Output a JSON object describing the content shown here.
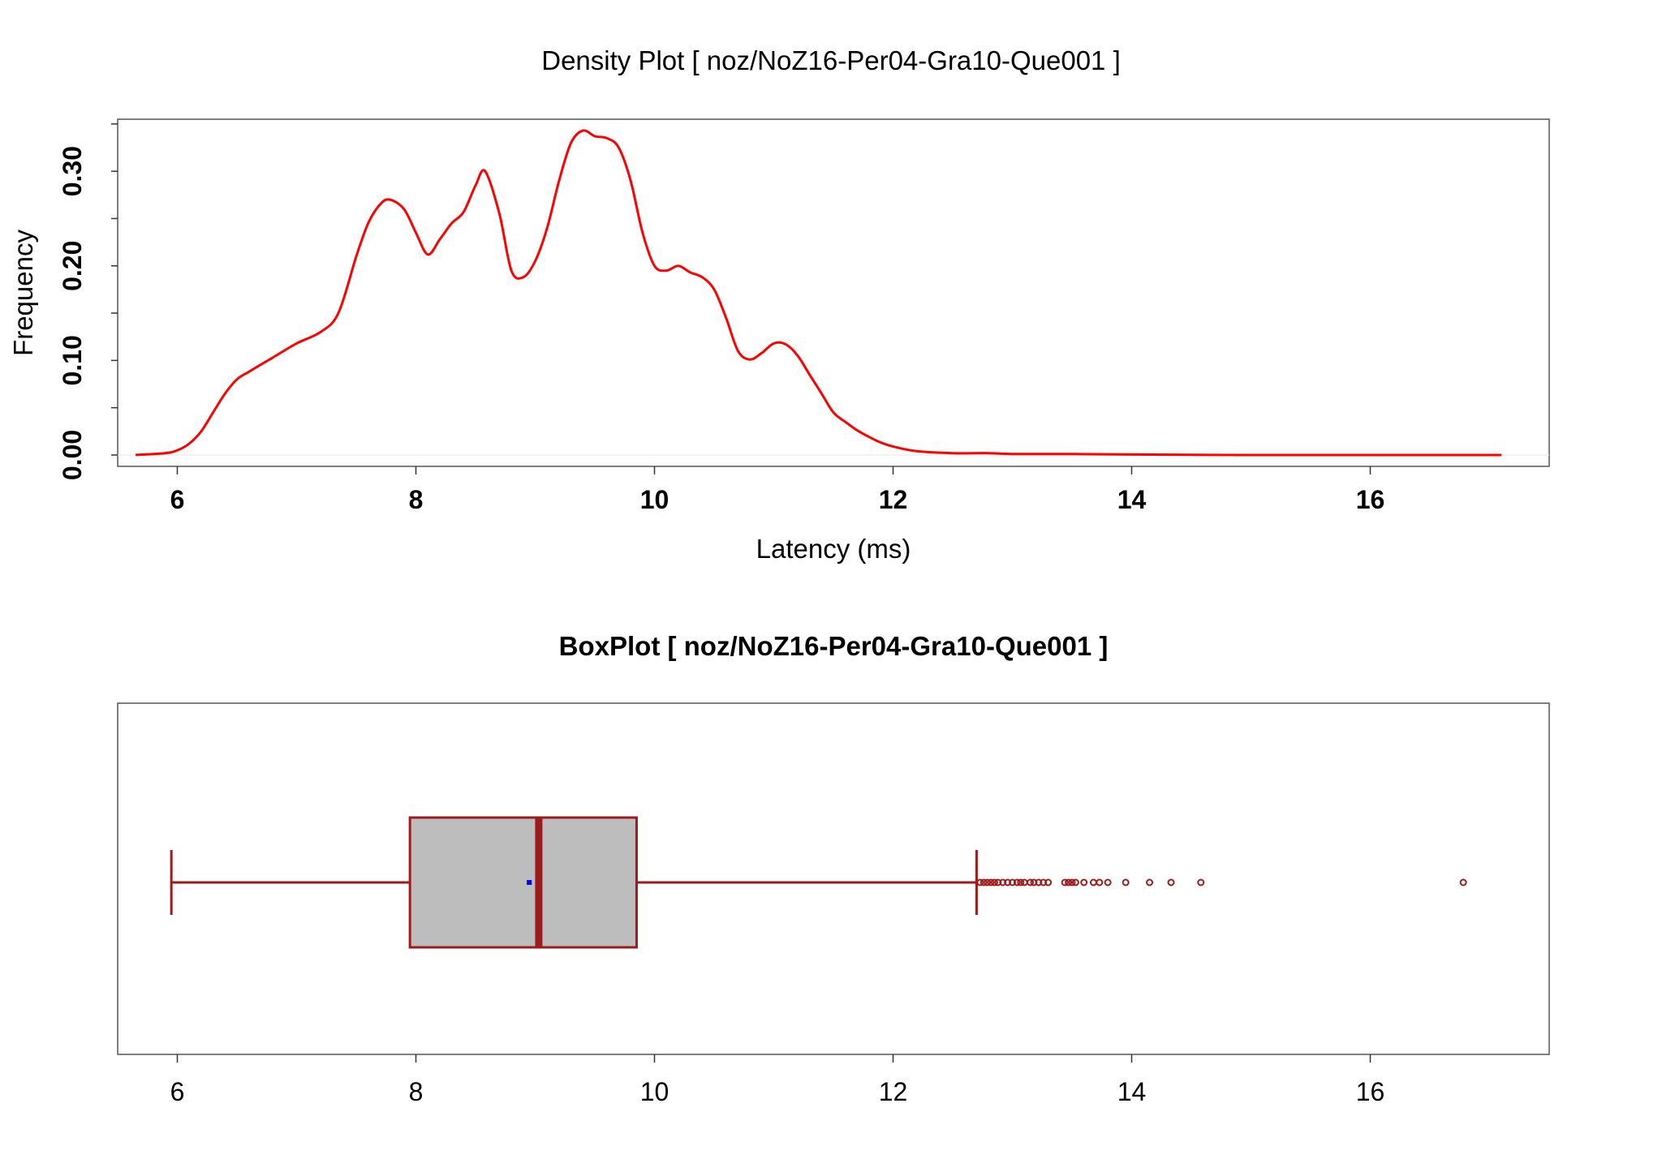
{
  "chart_data": [
    {
      "type": "line",
      "title": "Density Plot [ noz/NoZ16-Per04-Gra10-Que001 ]",
      "xlabel": "Latency (ms)",
      "ylabel": "Frequency",
      "xlim": [
        5.5,
        17.5
      ],
      "ylim": [
        -0.012,
        0.355
      ],
      "x_ticks": [
        "6",
        "8",
        "10",
        "12",
        "14",
        "16"
      ],
      "y_ticks": [
        "0.00",
        "0.10",
        "0.20",
        "0.30"
      ],
      "grid": false,
      "series": [
        {
          "color": "#ff0000",
          "x": [
            5.65,
            5.9,
            6.0,
            6.1,
            6.2,
            6.3,
            6.4,
            6.5,
            6.6,
            6.8,
            7.0,
            7.2,
            7.35,
            7.5,
            7.6,
            7.7,
            7.78,
            7.9,
            8.0,
            8.1,
            8.2,
            8.3,
            8.4,
            8.5,
            8.58,
            8.7,
            8.8,
            8.9,
            9.0,
            9.1,
            9.2,
            9.3,
            9.4,
            9.5,
            9.6,
            9.7,
            9.8,
            9.9,
            10.0,
            10.1,
            10.2,
            10.3,
            10.4,
            10.5,
            10.6,
            10.7,
            10.8,
            10.9,
            11.0,
            11.1,
            11.2,
            11.3,
            11.4,
            11.5,
            11.6,
            11.7,
            11.8,
            11.9,
            12.0,
            12.2,
            12.5,
            12.8,
            13.0,
            13.5,
            14.0,
            15.0,
            16.0,
            17.1
          ],
          "y": [
            0.0,
            0.002,
            0.005,
            0.012,
            0.025,
            0.045,
            0.065,
            0.08,
            0.088,
            0.103,
            0.118,
            0.13,
            0.15,
            0.21,
            0.245,
            0.265,
            0.27,
            0.26,
            0.235,
            0.212,
            0.228,
            0.245,
            0.257,
            0.285,
            0.3,
            0.255,
            0.195,
            0.188,
            0.205,
            0.24,
            0.29,
            0.33,
            0.343,
            0.337,
            0.335,
            0.325,
            0.29,
            0.235,
            0.2,
            0.195,
            0.2,
            0.193,
            0.188,
            0.175,
            0.145,
            0.11,
            0.101,
            0.108,
            0.118,
            0.117,
            0.105,
            0.085,
            0.065,
            0.045,
            0.035,
            0.026,
            0.019,
            0.013,
            0.009,
            0.004,
            0.002,
            0.002,
            0.001,
            0.001,
            0.0005,
            0.0,
            0.0,
            0.0
          ]
        }
      ]
    },
    {
      "type": "boxplot",
      "title": "BoxPlot [ noz/NoZ16-Per04-Gra10-Que001 ]",
      "xlim": [
        5.5,
        17.5
      ],
      "x_ticks": [
        "6",
        "8",
        "10",
        "12",
        "14",
        "16"
      ],
      "box_fill": "#bdbdbd",
      "line_color": "#9e1b1b",
      "mean_color": "#0000ff",
      "whisker_low": 5.95,
      "q1": 7.95,
      "median": 9.03,
      "q3": 9.85,
      "whisker_high": 12.7,
      "mean": 8.95,
      "outliers": [
        12.73,
        12.76,
        12.79,
        12.82,
        12.85,
        12.88,
        12.92,
        12.96,
        13.0,
        13.04,
        13.07,
        13.1,
        13.15,
        13.18,
        13.22,
        13.26,
        13.3,
        13.44,
        13.47,
        13.5,
        13.53,
        13.6,
        13.68,
        13.73,
        13.8,
        13.95,
        14.15,
        14.33,
        14.58,
        16.78
      ]
    }
  ]
}
